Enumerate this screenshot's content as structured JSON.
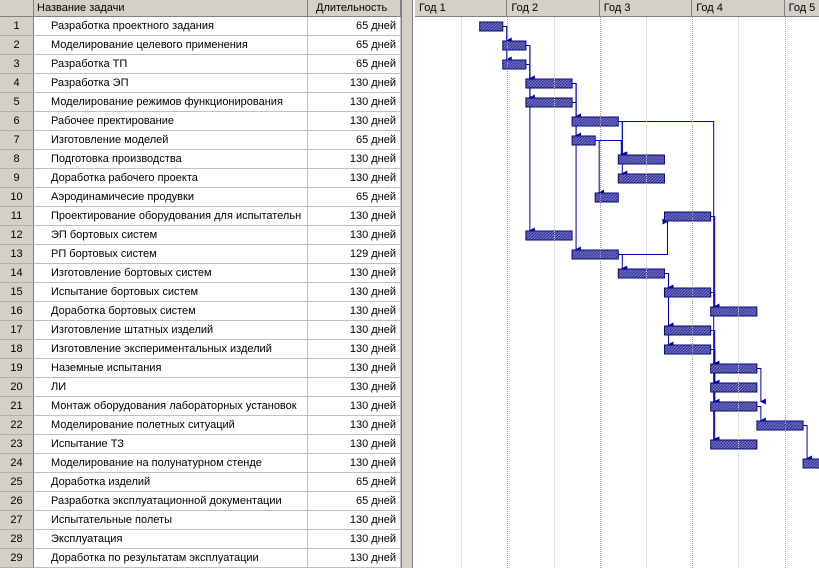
{
  "columns": {
    "num": "",
    "name": "Название задачи",
    "duration": "Длительность"
  },
  "timescale": [
    "Год 1",
    "Год 2",
    "Год 3",
    "Год 4",
    "Год 5"
  ],
  "colors": {
    "bar_fill": "#3c3ca0",
    "bar_border": "#0a0a78",
    "link": "#0000b4",
    "header": "#d4d0c8"
  },
  "tasks": [
    {
      "id": "1",
      "name": "Разработка проектного задания",
      "duration": "65 дней",
      "start": 1.4,
      "finish": 1.9
    },
    {
      "id": "2",
      "name": "Моделирование целевого применения",
      "duration": "65 дней",
      "start": 1.9,
      "finish": 2.4
    },
    {
      "id": "3",
      "name": "Разработка ТП",
      "duration": "65 дней",
      "start": 1.9,
      "finish": 2.4
    },
    {
      "id": "4",
      "name": "Разработка ЭП",
      "duration": "130 дней",
      "start": 2.4,
      "finish": 3.4
    },
    {
      "id": "5",
      "name": "Моделирование режимов функционирования",
      "duration": "130 дней",
      "start": 2.4,
      "finish": 3.4
    },
    {
      "id": "6",
      "name": "Рабочее пректирование",
      "duration": "130 дней",
      "start": 3.4,
      "finish": 4.4
    },
    {
      "id": "7",
      "name": "Изготовление моделей",
      "duration": "65 дней",
      "start": 3.4,
      "finish": 3.9
    },
    {
      "id": "8",
      "name": "Подготовка производства",
      "duration": "130 дней",
      "start": 4.4,
      "finish": 5.4
    },
    {
      "id": "9",
      "name": "Доработка рабочего проекта",
      "duration": "130 дней",
      "start": 4.4,
      "finish": 5.4
    },
    {
      "id": "10",
      "name": "Аэродинамичесие продувки",
      "duration": "65 дней",
      "start": 3.9,
      "finish": 4.4
    },
    {
      "id": "11",
      "name": "Проектирование оборудования для испытательн",
      "duration": "130 дней",
      "start": 5.4,
      "finish": 6.4
    },
    {
      "id": "12",
      "name": "ЭП бортовых систем",
      "duration": "130 дней",
      "start": 2.4,
      "finish": 3.4
    },
    {
      "id": "13",
      "name": "РП бортовых систем",
      "duration": "129 дней",
      "start": 3.4,
      "finish": 4.4
    },
    {
      "id": "14",
      "name": "Изготовление бортовых систем",
      "duration": "130 дней",
      "start": 4.4,
      "finish": 5.4
    },
    {
      "id": "15",
      "name": "Испытание бортовых систем",
      "duration": "130 дней",
      "start": 5.4,
      "finish": 6.4
    },
    {
      "id": "16",
      "name": "Доработка бортовых систем",
      "duration": "130 дней",
      "start": 6.4,
      "finish": 7.4
    },
    {
      "id": "17",
      "name": "Изготовление штатных изделий",
      "duration": "130 дней",
      "start": 5.4,
      "finish": 6.4
    },
    {
      "id": "18",
      "name": "Изготовление экспериментальных изделий",
      "duration": "130 дней",
      "start": 5.4,
      "finish": 6.4
    },
    {
      "id": "19",
      "name": "Наземные испытания",
      "duration": "130 дней",
      "start": 6.4,
      "finish": 7.4
    },
    {
      "id": "20",
      "name": "ЛИ",
      "duration": "130 дней",
      "start": 6.4,
      "finish": 7.4
    },
    {
      "id": "21",
      "name": "Монтаж оборудования лабораторных установок",
      "duration": "130 дней",
      "start": 6.4,
      "finish": 7.4
    },
    {
      "id": "22",
      "name": "Моделирование полетных ситуаций",
      "duration": "130 дней",
      "start": 7.4,
      "finish": 8.4
    },
    {
      "id": "23",
      "name": "Испытание ТЗ",
      "duration": "130 дней",
      "start": 6.4,
      "finish": 7.4
    },
    {
      "id": "24",
      "name": "Моделирование на полунатурном стенде",
      "duration": "130 дней",
      "start": 8.4,
      "finish": 9.4
    },
    {
      "id": "25",
      "name": "Доработка  изделий",
      "duration": "65 дней"
    },
    {
      "id": "26",
      "name": "Разработка эксплуатационной документации",
      "duration": "65 дней"
    },
    {
      "id": "27",
      "name": "Испытательные полеты",
      "duration": "130 дней"
    },
    {
      "id": "28",
      "name": "Эксплуатация",
      "duration": "130 дней"
    },
    {
      "id": "29",
      "name": "Доработка по результатам эксплуатации",
      "duration": "130 дней"
    }
  ],
  "links": [
    [
      1,
      2
    ],
    [
      1,
      3
    ],
    [
      2,
      4
    ],
    [
      2,
      5
    ],
    [
      3,
      4
    ],
    [
      3,
      12
    ],
    [
      4,
      6
    ],
    [
      4,
      7
    ],
    [
      4,
      13
    ],
    [
      5,
      6
    ],
    [
      6,
      8
    ],
    [
      6,
      9
    ],
    [
      7,
      10
    ],
    [
      7,
      8
    ],
    [
      13,
      14
    ],
    [
      13,
      11
    ],
    [
      14,
      15
    ],
    [
      14,
      17
    ],
    [
      14,
      18
    ],
    [
      11,
      16
    ],
    [
      15,
      16
    ],
    [
      17,
      19
    ],
    [
      18,
      19
    ],
    [
      18,
      20
    ],
    [
      18,
      21
    ],
    [
      18,
      23
    ],
    [
      19,
      21
    ],
    [
      21,
      22
    ],
    [
      22,
      24
    ],
    [
      6,
      23
    ]
  ]
}
